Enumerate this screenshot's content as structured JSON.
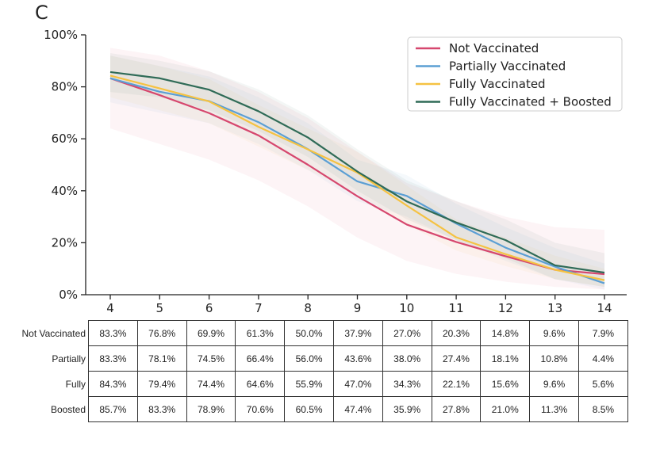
{
  "panel_letter": "C",
  "chart_data": {
    "type": "line",
    "x": [
      4,
      5,
      6,
      7,
      8,
      9,
      10,
      11,
      12,
      13,
      14
    ],
    "ylim": [
      0,
      100
    ],
    "yticks": [
      "0%",
      "20%",
      "40%",
      "60%",
      "80%",
      "100%"
    ],
    "ytick_values": [
      0,
      20,
      40,
      60,
      80,
      100
    ],
    "legend_position": "top-right",
    "grid": false,
    "series": [
      {
        "name": "Not Vaccinated",
        "color": "#d6476e",
        "values": [
          83.3,
          76.8,
          69.9,
          61.3,
          50.0,
          37.9,
          27.0,
          20.3,
          14.8,
          9.6,
          7.9
        ],
        "band_lower": [
          64,
          58,
          52,
          44,
          34,
          22,
          13,
          8,
          5,
          3,
          2
        ],
        "band_upper": [
          95,
          92,
          86,
          78,
          68,
          55,
          43,
          36,
          30,
          26,
          25
        ]
      },
      {
        "name": "Partially Vaccinated",
        "color": "#5b9fd4",
        "values": [
          83.3,
          78.1,
          74.5,
          66.4,
          56.0,
          43.6,
          38.0,
          27.4,
          18.1,
          10.8,
          4.4
        ],
        "band_lower": [
          74,
          70,
          66,
          58,
          48,
          36,
          30,
          21,
          13,
          6,
          2
        ],
        "band_upper": [
          92,
          88,
          84,
          76,
          66,
          52,
          46,
          35,
          26,
          18,
          12
        ]
      },
      {
        "name": "Fully Vaccinated",
        "color": "#f5c242",
        "values": [
          84.3,
          79.4,
          74.4,
          64.6,
          55.9,
          47.0,
          34.3,
          22.1,
          15.6,
          9.6,
          5.6
        ],
        "band_lower": [
          76,
          71,
          66,
          57,
          48,
          39,
          27,
          17,
          11,
          6,
          3
        ],
        "band_upper": [
          92,
          88,
          83,
          73,
          64,
          55,
          42,
          29,
          22,
          15,
          10
        ]
      },
      {
        "name": "Fully Vaccinated + Boosted",
        "color": "#2f6b57",
        "values": [
          85.7,
          83.3,
          78.9,
          70.6,
          60.5,
          47.4,
          35.9,
          27.8,
          21.0,
          11.3,
          8.5
        ],
        "band_lower": [
          78,
          76,
          71,
          63,
          53,
          40,
          29,
          21,
          14,
          6,
          3
        ],
        "band_upper": [
          93,
          90,
          86,
          79,
          69,
          56,
          44,
          36,
          29,
          20,
          16
        ]
      }
    ],
    "table": {
      "row_labels": [
        "Not Vaccinated",
        "Partially",
        "Fully",
        "Boosted"
      ],
      "rows": [
        [
          "83.3%",
          "76.8%",
          "69.9%",
          "61.3%",
          "50.0%",
          "37.9%",
          "27.0%",
          "20.3%",
          "14.8%",
          "9.6%",
          "7.9%"
        ],
        [
          "83.3%",
          "78.1%",
          "74.5%",
          "66.4%",
          "56.0%",
          "43.6%",
          "38.0%",
          "27.4%",
          "18.1%",
          "10.8%",
          "4.4%"
        ],
        [
          "84.3%",
          "79.4%",
          "74.4%",
          "64.6%",
          "55.9%",
          "47.0%",
          "34.3%",
          "22.1%",
          "15.6%",
          "9.6%",
          "5.6%"
        ],
        [
          "85.7%",
          "83.3%",
          "78.9%",
          "70.6%",
          "60.5%",
          "47.4%",
          "35.9%",
          "27.8%",
          "21.0%",
          "11.3%",
          "8.5%"
        ]
      ]
    }
  }
}
